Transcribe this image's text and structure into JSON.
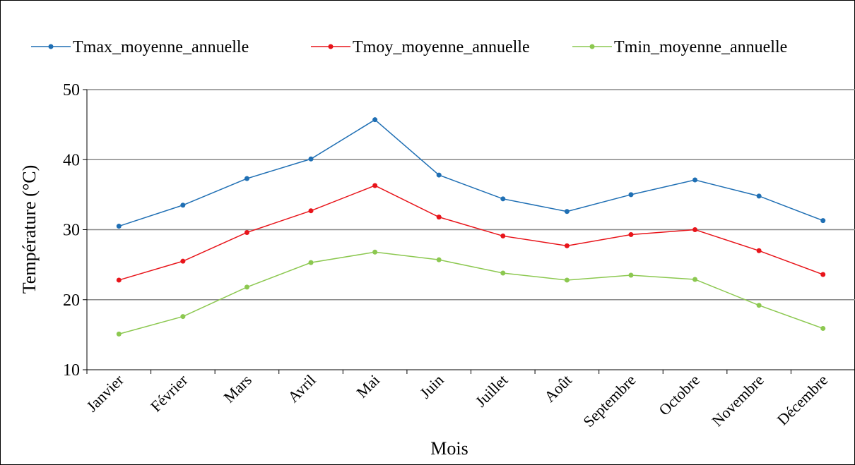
{
  "chart_data": {
    "type": "line",
    "categories": [
      "Janvier",
      "Février",
      "Mars",
      "Avril",
      "Mai",
      "Juin",
      "Juillet",
      "Août",
      "Septembre",
      "Octobre",
      "Novembre",
      "Décembre"
    ],
    "series": [
      {
        "name": "Tmax_moyenne_annuelle",
        "color": "#1f6fb4",
        "values": [
          30.5,
          33.5,
          37.3,
          40.1,
          45.7,
          37.8,
          34.4,
          32.6,
          35.0,
          37.1,
          34.8,
          31.3
        ]
      },
      {
        "name": "Tmoy_moyenne_annuelle",
        "color": "#e8141a",
        "values": [
          22.8,
          25.5,
          29.6,
          32.7,
          36.3,
          31.8,
          29.1,
          27.7,
          29.3,
          30.0,
          27.0,
          23.6
        ]
      },
      {
        "name": "Tmin_moyenne_annuelle",
        "color": "#8cc850",
        "values": [
          15.1,
          17.6,
          21.8,
          25.3,
          26.8,
          25.7,
          23.8,
          22.8,
          23.5,
          22.9,
          19.2,
          15.9
        ]
      }
    ],
    "xlabel": "Mois",
    "ylabel": "Température (°C)",
    "ylim": [
      10,
      50
    ],
    "yticks": [
      10,
      20,
      30,
      40,
      50
    ],
    "grid": true,
    "legend": "top"
  }
}
